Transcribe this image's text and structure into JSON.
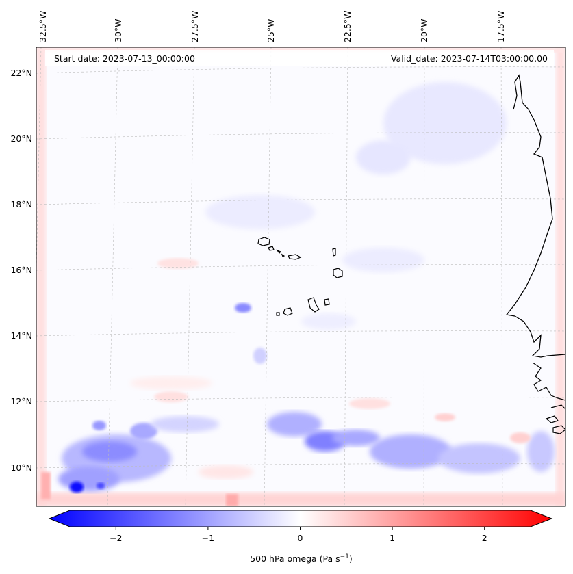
{
  "header": {
    "start_date": "Start date: 2023-07-13_00:00:00",
    "valid_date": "Valid_date: 2023-07-14T03:00:00.00"
  },
  "map": {
    "lon_labels": [
      "32.5°W",
      "30°W",
      "27.5°W",
      "25°W",
      "22.5°W",
      "20°W",
      "17.5°W"
    ],
    "lat_labels": [
      "22°N",
      "20°N",
      "18°N",
      "16°N",
      "14°N",
      "12°N",
      "10°N"
    ],
    "variable": "500 hPa omega"
  },
  "colorbar": {
    "label": "500 hPa omega (Pa s",
    "label_sup": "−1",
    "label_end": ")",
    "ticks": [
      "−2",
      "−1",
      "0",
      "1",
      "2"
    ],
    "tick_values": [
      -2,
      -1,
      0,
      1,
      2
    ],
    "range": [
      -2.5,
      2.5
    ],
    "colors": {
      "negative": "#0000ff",
      "zero": "#ffffff",
      "positive": "#ff0000"
    }
  }
}
